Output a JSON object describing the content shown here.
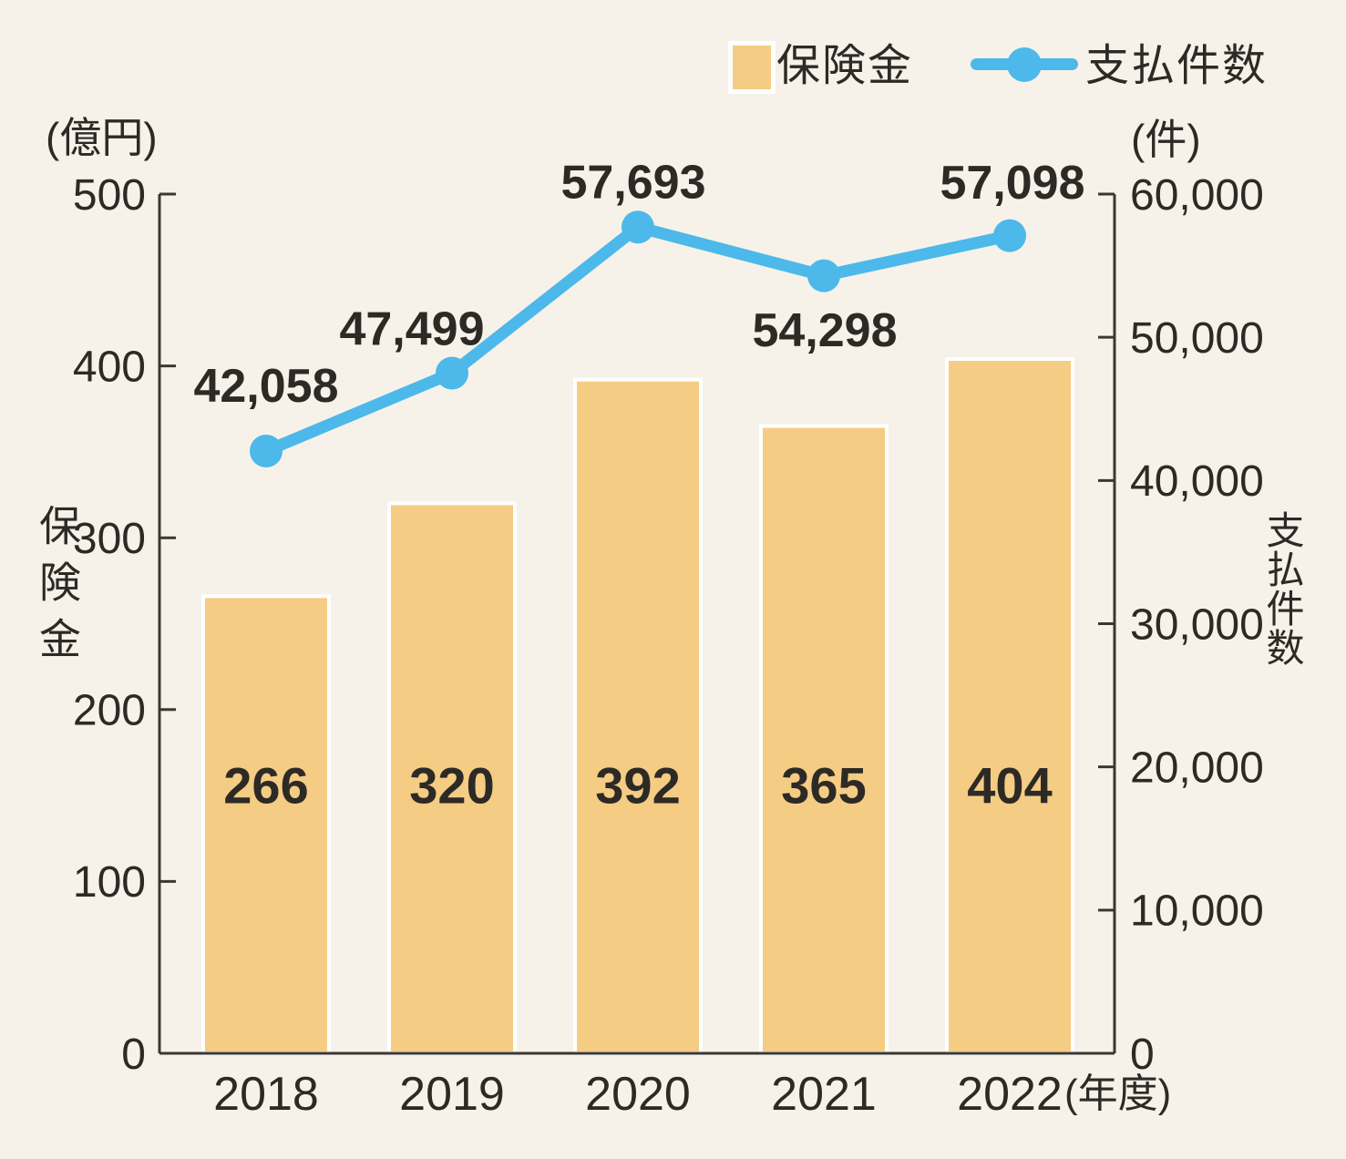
{
  "chart_data": {
    "type": "bar",
    "subtype": "bar+line combo, dual axis",
    "categories": [
      "2018",
      "2019",
      "2020",
      "2021",
      "2022"
    ],
    "series": [
      {
        "name": "保険金",
        "type": "bar",
        "axis": "left",
        "values": [
          266,
          320,
          392,
          365,
          404
        ]
      },
      {
        "name": "支払件数",
        "type": "line",
        "axis": "right",
        "values": [
          42058,
          47499,
          57693,
          54298,
          57098
        ]
      }
    ],
    "left_axis": {
      "unit_label": "(億円)",
      "title": "保険金",
      "min": 0,
      "max": 500,
      "ticks": [
        0,
        100,
        200,
        300,
        400,
        500
      ]
    },
    "right_axis": {
      "unit_label": "(件)",
      "title": "支払件数",
      "min": 0,
      "max": 60000,
      "ticks": [
        0,
        10000,
        20000,
        30000,
        40000,
        50000,
        60000
      ]
    },
    "x_axis": {
      "suffix_label": "(年度)"
    },
    "legend": [
      {
        "label": "保険金",
        "marker": "square"
      },
      {
        "label": "支払件数",
        "marker": "line-circle"
      }
    ],
    "grid": false,
    "legend_position": "top-right",
    "colors": {
      "bar": "#f5cc84",
      "line": "#4db8ea",
      "text": "#2d2a26",
      "axis": "#3b3833",
      "background": "#f6f2e9",
      "bar_border": "#ffffff"
    }
  }
}
